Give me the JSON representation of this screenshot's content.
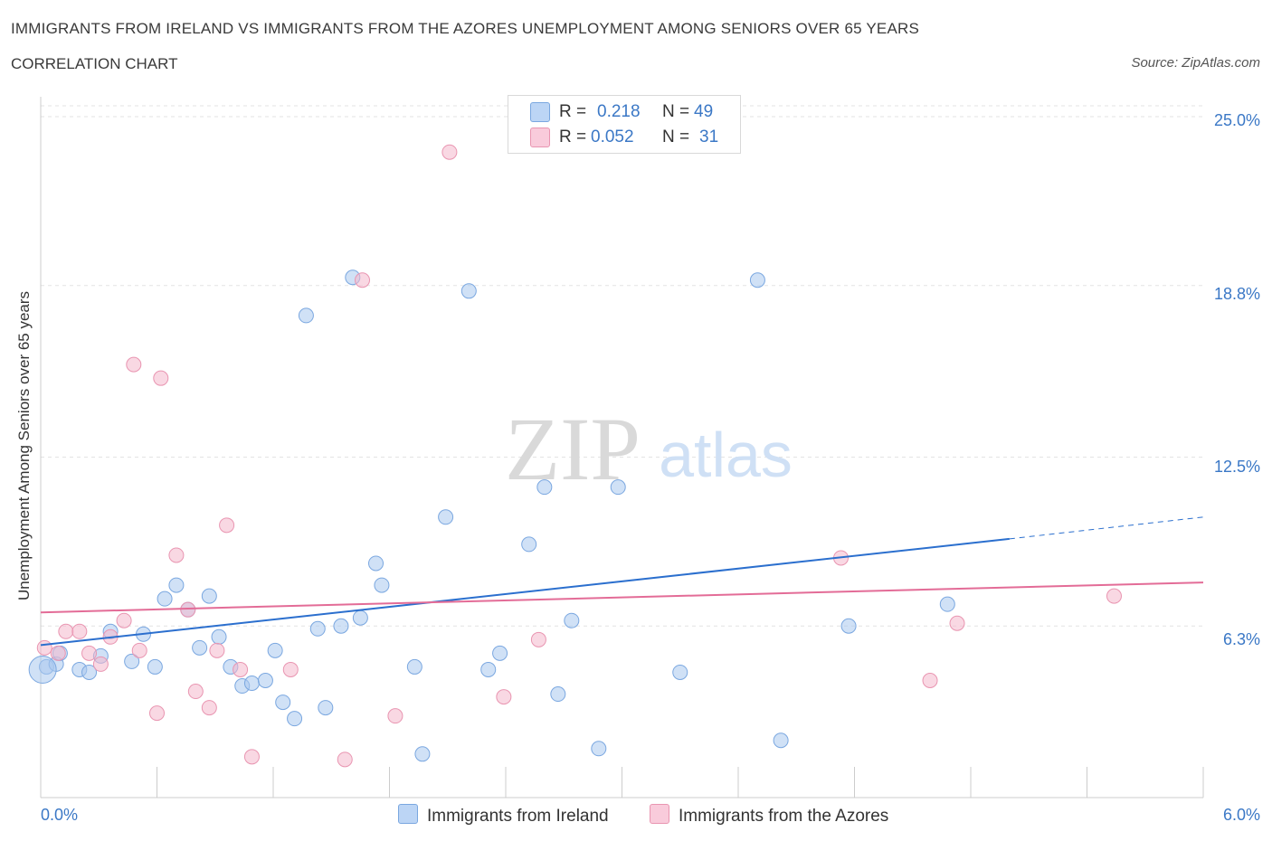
{
  "chart_data": {
    "type": "scatter",
    "title": "IMMIGRANTS FROM IRELAND VS IMMIGRANTS FROM THE AZORES UNEMPLOYMENT AMONG SENIORS OVER 65 YEARS",
    "subtitle": "CORRELATION CHART",
    "source": "Source: ZipAtlas.com",
    "watermark_zip": "ZIP",
    "watermark_atlas": "atlas",
    "xlabel": "",
    "ylabel": "Unemployment Among Seniors over 65 years",
    "xlim": [
      0,
      6
    ],
    "ylim": [
      0,
      25.4
    ],
    "x_tick_labels": [
      {
        "value": 0,
        "label": "0.0%"
      },
      {
        "value": 6,
        "label": "6.0%"
      }
    ],
    "y_tick_labels": [
      {
        "value": 6.3,
        "label": "6.3%"
      },
      {
        "value": 12.5,
        "label": "12.5%"
      },
      {
        "value": 18.8,
        "label": "18.8%"
      },
      {
        "value": 25.0,
        "label": "25.0%"
      }
    ],
    "grid": true,
    "legend_top": {
      "r_label": "R =",
      "n_label": "N =",
      "entries": [
        {
          "r": "0.218",
          "n": "49"
        },
        {
          "r": "0.052",
          "n": "31"
        }
      ]
    },
    "series": [
      {
        "name": "Immigrants from Ireland",
        "color": "#a9c8ef",
        "stroke": "#7aa7e0",
        "line_color": "#2b6fce",
        "trend": {
          "x": [
            0,
            5.0
          ],
          "y": [
            5.6,
            9.5
          ]
        },
        "trend_dashed": {
          "x": [
            5.0,
            6.0
          ],
          "y": [
            9.5,
            10.3
          ]
        },
        "points": [
          [
            0.03,
            4.8
          ],
          [
            0.08,
            4.9
          ],
          [
            0.1,
            5.3
          ],
          [
            0.2,
            4.7
          ],
          [
            0.25,
            4.6
          ],
          [
            0.31,
            5.2
          ],
          [
            0.36,
            6.1
          ],
          [
            0.47,
            5.0
          ],
          [
            0.53,
            6.0
          ],
          [
            0.59,
            4.8
          ],
          [
            0.64,
            7.3
          ],
          [
            0.7,
            7.8
          ],
          [
            0.76,
            6.9
          ],
          [
            0.82,
            5.5
          ],
          [
            0.87,
            7.4
          ],
          [
            0.92,
            5.9
          ],
          [
            0.98,
            4.8
          ],
          [
            1.04,
            4.1
          ],
          [
            1.09,
            4.2
          ],
          [
            1.16,
            4.3
          ],
          [
            1.21,
            5.4
          ],
          [
            1.25,
            3.5
          ],
          [
            1.31,
            2.9
          ],
          [
            1.37,
            17.7
          ],
          [
            1.43,
            6.2
          ],
          [
            1.47,
            3.3
          ],
          [
            1.55,
            6.3
          ],
          [
            1.61,
            19.1
          ],
          [
            1.65,
            6.6
          ],
          [
            1.73,
            8.6
          ],
          [
            1.76,
            7.8
          ],
          [
            1.93,
            4.8
          ],
          [
            1.97,
            1.6
          ],
          [
            2.09,
            10.3
          ],
          [
            2.21,
            18.6
          ],
          [
            2.31,
            4.7
          ],
          [
            2.37,
            5.3
          ],
          [
            2.52,
            9.3
          ],
          [
            2.6,
            11.4
          ],
          [
            2.67,
            3.8
          ],
          [
            2.74,
            6.5
          ],
          [
            2.88,
            1.8
          ],
          [
            2.98,
            11.4
          ],
          [
            3.3,
            4.6
          ],
          [
            3.7,
            19.0
          ],
          [
            3.82,
            2.1
          ],
          [
            4.17,
            6.3
          ],
          [
            4.68,
            7.1
          ],
          [
            0.01,
            4.7
          ]
        ]
      },
      {
        "name": "Immigrants from the Azores",
        "color": "#f4b8cc",
        "stroke": "#e995b1",
        "line_color": "#e36c97",
        "trend": {
          "x": [
            0,
            6.0
          ],
          "y": [
            6.8,
            7.9
          ]
        },
        "points": [
          [
            0.02,
            5.5
          ],
          [
            0.09,
            5.3
          ],
          [
            0.13,
            6.1
          ],
          [
            0.2,
            6.1
          ],
          [
            0.25,
            5.3
          ],
          [
            0.31,
            4.9
          ],
          [
            0.36,
            5.9
          ],
          [
            0.43,
            6.5
          ],
          [
            0.48,
            15.9
          ],
          [
            0.51,
            5.4
          ],
          [
            0.6,
            3.1
          ],
          [
            0.62,
            15.4
          ],
          [
            0.7,
            8.9
          ],
          [
            0.76,
            6.9
          ],
          [
            0.8,
            3.9
          ],
          [
            0.87,
            3.3
          ],
          [
            0.91,
            5.4
          ],
          [
            0.96,
            10.0
          ],
          [
            1.03,
            4.7
          ],
          [
            1.09,
            1.5
          ],
          [
            1.29,
            4.7
          ],
          [
            1.57,
            1.4
          ],
          [
            1.66,
            19.0
          ],
          [
            1.83,
            3.0
          ],
          [
            2.11,
            23.7
          ],
          [
            2.39,
            3.7
          ],
          [
            2.57,
            5.8
          ],
          [
            4.13,
            8.8
          ],
          [
            4.59,
            4.3
          ],
          [
            4.73,
            6.4
          ],
          [
            5.54,
            7.4
          ]
        ]
      }
    ]
  }
}
